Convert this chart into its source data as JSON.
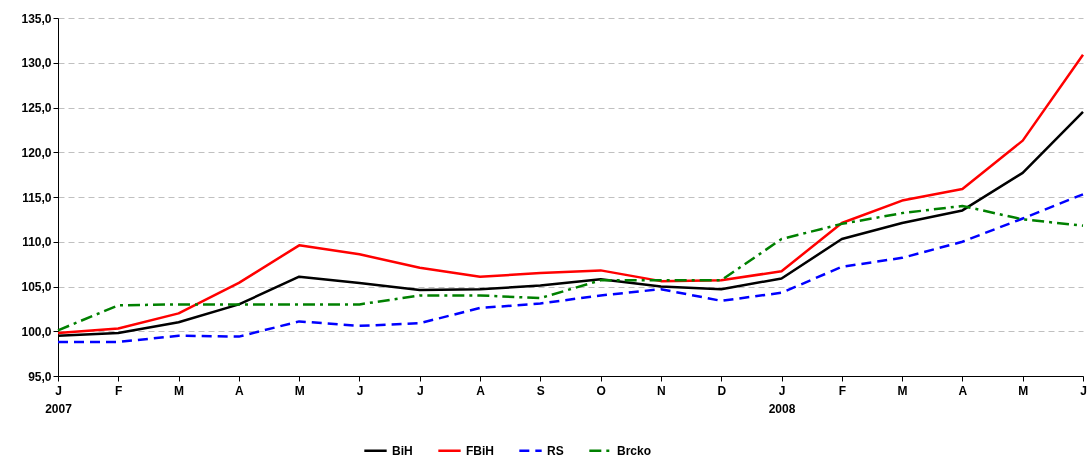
{
  "chart_data": {
    "type": "line",
    "categories": [
      "J\n2007",
      "F",
      "M",
      "A",
      "M",
      "J",
      "J",
      "A",
      "S",
      "O",
      "N",
      "D",
      "J\n2008",
      "F",
      "M",
      "A",
      "M",
      "J"
    ],
    "ylim": [
      95,
      135
    ],
    "yticks": [
      {
        "value": 95,
        "label": "95,0"
      },
      {
        "value": 100,
        "label": "100,0"
      },
      {
        "value": 105,
        "label": "105,0"
      },
      {
        "value": 110,
        "label": "110,0"
      },
      {
        "value": 115,
        "label": "115,0"
      },
      {
        "value": 120,
        "label": "120,0"
      },
      {
        "value": 125,
        "label": "125,0"
      },
      {
        "value": 130,
        "label": "130,0"
      },
      {
        "value": 135,
        "label": "135,0"
      }
    ],
    "grid": "y",
    "legend": "bottom",
    "marker": "none",
    "series": [
      {
        "name": "BiH",
        "color": "#000000",
        "line_style": "solid",
        "values": [
          99.5,
          99.8,
          101,
          103,
          106.1,
          105.4,
          104.6,
          104.7,
          105.1,
          105.8,
          105,
          104.7,
          105.9,
          110.3,
          112.1,
          113.5,
          117.7,
          124.5
        ]
      },
      {
        "name": "FBiH",
        "color": "#ff0000",
        "line_style": "solid",
        "values": [
          99.8,
          100.3,
          102,
          105.4,
          109.6,
          108.6,
          107.1,
          106.1,
          106.5,
          106.8,
          105.6,
          105.7,
          106.7,
          112.1,
          114.6,
          115.9,
          121.3,
          130.9
        ]
      },
      {
        "name": "RS",
        "color": "#0000ff",
        "line_style": "dashed",
        "values": [
          98.8,
          98.8,
          99.5,
          99.4,
          101.1,
          100.6,
          100.9,
          102.6,
          103.1,
          104,
          104.7,
          103.4,
          104.3,
          107.2,
          108.2,
          110,
          112.6,
          115.3
        ]
      },
      {
        "name": "Brcko",
        "color": "#008000",
        "line_style": "dashdot",
        "values": [
          100.1,
          102.9,
          103,
          103,
          103,
          103,
          104,
          104,
          103.7,
          105.7,
          105.7,
          105.7,
          110.3,
          112,
          113.2,
          114,
          112.5,
          111.8
        ]
      }
    ]
  }
}
